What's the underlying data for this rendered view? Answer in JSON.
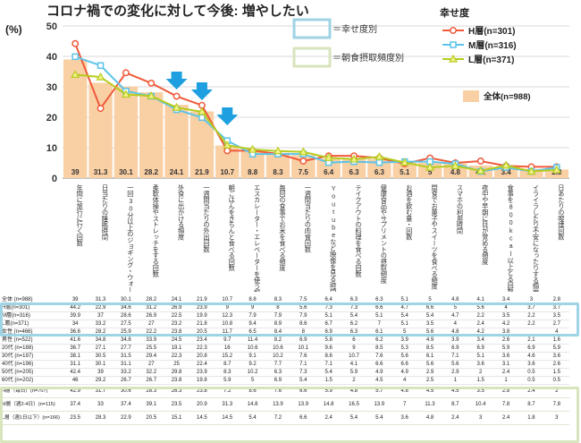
{
  "chart_data": {
    "type": "bar",
    "title": "コロナ禍での変化に対して今後: 増やしたい",
    "ylabel": "(%)",
    "ylim": [
      0,
      50
    ],
    "yticks": [
      0,
      10,
      20,
      30,
      40,
      50
    ],
    "legend_title": "幸せ度",
    "legend_bar": "全体(n=988)",
    "frame_labels": {
      "happiness": "＝幸せ度別",
      "breakfast": "＝朝食摂取頻度別"
    },
    "categories": [
      "年間に旅行に行く回数",
      "日当たりの睡眠時間",
      "一回30分以上のジョギング・ウォーキングを行う回数",
      "柔軟体操やストレッチをする回数",
      "外食に出かける頻度",
      "一週間当たりの外出回数",
      "朝ごはんをきちんと食べる回数",
      "エスカレーター・エレベーターを使う頻度",
      "毎回の食事でお米を食べる頻度",
      "一週間当たりの肉食回数",
      "Youtubeなど映像を見る時間",
      "テイクアウトの料理を食べる回数",
      "健康食品やサプリメントの摂取頻度",
      "お酒を飲む量・回数",
      "間食でお菓子やスイーツを食べる頻度",
      "スマホの利用時間",
      "夜中や早朝に目が覚める頻度",
      "食事を800kcal以上とる回数",
      "イライラしたり不安になったりする頻度",
      "日あたりの喫煙回数"
    ],
    "values": [
      39,
      31.3,
      30.1,
      28.2,
      24.1,
      21.9,
      10.7,
      8.8,
      8.3,
      7.5,
      6.4,
      6.3,
      6.3,
      5.1,
      5,
      4.8,
      4.1,
      3.4,
      3,
      2.8
    ],
    "series": [
      {
        "name": "H層(n=301)",
        "color": "#f05a3a",
        "values": [
          44.2,
          22.9,
          34.6,
          31.2,
          26.9,
          23.9,
          9,
          9,
          8,
          5.6,
          7.3,
          7.3,
          6.6,
          4.7,
          6.6,
          5,
          5.6,
          4,
          3.7,
          3.7
        ]
      },
      {
        "name": "M層(n=316)",
        "color": "#5cc4e8",
        "values": [
          39.9,
          37,
          28.6,
          26.9,
          22.5,
          19.9,
          12.3,
          7.9,
          7.9,
          7.9,
          5.1,
          5.4,
          5.1,
          5.4,
          5.4,
          4.7,
          2.2,
          3.5,
          2.2,
          3.5
        ]
      },
      {
        "name": "L層(n=371)",
        "color": "#b6cc1e",
        "values": [
          34,
          33.2,
          27.5,
          27,
          23.2,
          21.8,
          10.8,
          9.4,
          8.9,
          8.6,
          6.7,
          6.2,
          7,
          5.1,
          3.5,
          4,
          2.4,
          4.2,
          2.2,
          2.7
        ]
      }
    ],
    "table": {
      "rows": [
        {
          "label": "全体 (n=988)",
          "group": "all",
          "values": [
            "39",
            "31.3",
            "30.1",
            "28.2",
            "24.1",
            "21.9",
            "10.7",
            "8.8",
            "8.3",
            "7.5",
            "6.4",
            "6.3",
            "6.3",
            "5.1",
            "5",
            "4.8",
            "4.1",
            "3.4",
            "3",
            "2.8"
          ]
        },
        {
          "label": "H層(n=301)",
          "group": "happy",
          "values": [
            "44.2",
            "22.9",
            "34.6",
            "31.2",
            "26.9",
            "23.9",
            "9",
            "9",
            "8",
            "5.6",
            "7.3",
            "7.3",
            "6.6",
            "4.7",
            "6.6",
            "5",
            "5.6",
            "4",
            "3.7",
            "3.7"
          ]
        },
        {
          "label": "M層(n=316)",
          "group": "happy",
          "values": [
            "39.9",
            "37",
            "28.6",
            "26.9",
            "22.5",
            "19.9",
            "12.3",
            "7.9",
            "7.9",
            "7.9",
            "5.1",
            "5.4",
            "5.1",
            "5.4",
            "5.4",
            "4.7",
            "2.2",
            "3.5",
            "2.2",
            "3.5"
          ]
        },
        {
          "label": "L層(n=371)",
          "group": "happy",
          "values": [
            "34",
            "33.2",
            "27.5",
            "27",
            "23.2",
            "21.8",
            "10.8",
            "9.4",
            "8.9",
            "8.6",
            "6.7",
            "6.2",
            "7",
            "5.1",
            "3.5",
            "4",
            "2.4",
            "4.2",
            "2.2",
            "2.7"
          ]
        },
        {
          "label": "女性 (n=466)",
          "group": "demo",
          "values": [
            "36.6",
            "28.2",
            "25.9",
            "22.2",
            "23.8",
            "20.5",
            "11.7",
            "6.5",
            "8.4",
            "8",
            "6.9",
            "6.3",
            "6.1",
            "5",
            "5.6",
            "4.8",
            "4.2",
            "3.8",
            "",
            "4"
          ]
        },
        {
          "label": "男性 (n=522)",
          "group": "demo",
          "values": [
            "41.6",
            "34.8",
            "34.8",
            "33.9",
            "24.5",
            "23.4",
            "9.7",
            "11.4",
            "8.2",
            "6.9",
            "5.8",
            "6",
            "6.2",
            "3.9",
            "4.9",
            "3.9",
            "3.4",
            "2.6",
            "2.1",
            "1.6"
          ]
        },
        {
          "label": "20代 (n=188)",
          "group": "demo",
          "values": [
            "36.7",
            "27.1",
            "27.7",
            "25.5",
            "19.1",
            "22.3",
            "16",
            "10.6",
            "10.6",
            "10.1",
            "9.6",
            "9",
            "8.5",
            "5.3",
            "8.5",
            "6.9",
            "6.9",
            "5.9",
            "6.9",
            "5.9"
          ]
        },
        {
          "label": "30代 (n=197)",
          "group": "demo",
          "values": [
            "38.1",
            "30.5",
            "31.5",
            "29.4",
            "22.3",
            "20.8",
            "15.2",
            "9.1",
            "10.2",
            "7.6",
            "8.6",
            "10.7",
            "7.6",
            "5.6",
            "6.1",
            "7.1",
            "5.1",
            "3.6",
            "4.6",
            "3.6"
          ]
        },
        {
          "label": "40代 (n=196)",
          "group": "demo",
          "values": [
            "31.1",
            "30.1",
            "31.1",
            "27",
            "25",
            "22.4",
            "8.7",
            "9.2",
            "7.7",
            "7.1",
            "7.1",
            "4.1",
            "6.6",
            "6.6",
            "5.6",
            "5.6",
            "3.6",
            "3.1",
            "3.6",
            "2.6"
          ]
        },
        {
          "label": "50代 (n=205)",
          "group": "demo",
          "values": [
            "42.4",
            "39",
            "33.2",
            "32.2",
            "29.8",
            "23.9",
            "8.3",
            "10.2",
            "6.3",
            "7.3",
            "5.4",
            "5.9",
            "4.9",
            "4.9",
            "2.9",
            "2.9",
            "2",
            "2.4",
            "0.5",
            "1.5"
          ]
        },
        {
          "label": "60代 (n=202)",
          "group": "demo",
          "values": [
            "46",
            "29.2",
            "26.7",
            "26.7",
            "23.8",
            "19.8",
            "5.9",
            "5",
            "6.9",
            "5.4",
            "1.5",
            "2",
            "4.5",
            "4",
            "2.5",
            "1",
            "1.5",
            "1",
            "0.5",
            "0.5"
          ]
        },
        {
          "label": "H層（毎日）(n=707)",
          "group": "breakfast",
          "values": [
            "42.9",
            "31.7",
            "30.6",
            "28.3",
            "26.3",
            "23.8",
            "7.2",
            "8.6",
            "7.6",
            "6.6",
            "5.9",
            "4.8",
            "5.7",
            "4.8",
            "4.5",
            "4.5",
            "3.5",
            "2.8",
            "2.4",
            "2"
          ]
        },
        {
          "label": "M層（週2-4日）(n=115)",
          "group": "breakfast",
          "values": [
            "37.4",
            "33",
            "37.4",
            "39.1",
            "23.5",
            "20.9",
            "31.3",
            "14.8",
            "13.9",
            "13.9",
            "14.8",
            "16.5",
            "13.9",
            "7",
            "11.3",
            "8.7",
            "10.4",
            "7.8",
            "8.7",
            "7.8"
          ]
        },
        {
          "label": "L層（週1日以下）(n=166)",
          "group": "breakfast",
          "values": [
            "23.5",
            "28.3",
            "22.9",
            "20.5",
            "15.1",
            "14.5",
            "14.5",
            "5.4",
            "7.2",
            "6.6",
            "2.4",
            "5.4",
            "5.4",
            "3.6",
            "4.8",
            "2.4",
            "3",
            "2.4",
            "1.8",
            "3"
          ]
        }
      ]
    }
  }
}
